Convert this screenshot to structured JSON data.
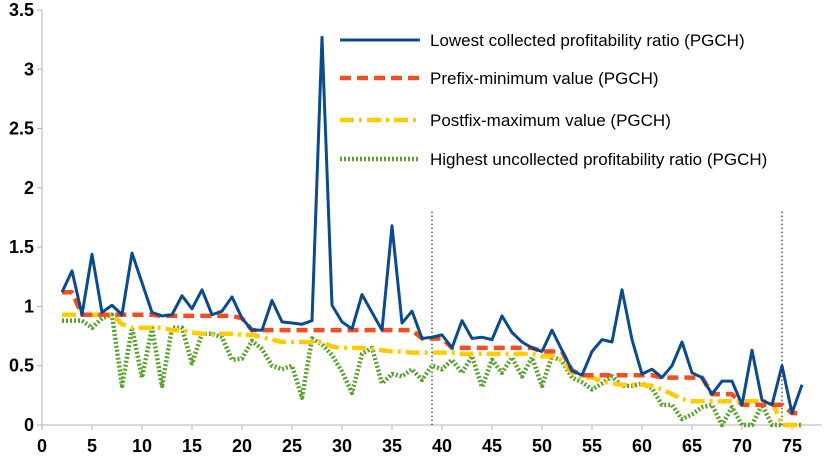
{
  "chart_data": {
    "type": "line",
    "title": "",
    "xlabel": "",
    "ylabel": "",
    "xlim": [
      0,
      78
    ],
    "ylim": [
      0,
      3.5
    ],
    "grid": false,
    "legend_position": "top-right",
    "x_ticks": [
      0,
      5,
      10,
      15,
      20,
      25,
      30,
      35,
      40,
      45,
      50,
      55,
      60,
      65,
      70,
      75
    ],
    "x_tick_labels": [
      "0",
      "5",
      "10",
      "15",
      "20",
      "25",
      "30",
      "35",
      "40",
      "45",
      "50",
      "55",
      "60",
      "65",
      "70",
      "75"
    ],
    "y_ticks": [
      0,
      0.5,
      1,
      1.5,
      2,
      2.5,
      3,
      3.5
    ],
    "y_tick_labels": [
      "0",
      "0.5",
      "1",
      "1.5",
      "2",
      "2.5",
      "3",
      "3.5"
    ],
    "vertical_markers": [
      39,
      74
    ],
    "x": [
      2,
      3,
      4,
      5,
      6,
      7,
      8,
      9,
      10,
      11,
      12,
      13,
      14,
      15,
      16,
      17,
      18,
      19,
      20,
      21,
      22,
      23,
      24,
      25,
      26,
      27,
      28,
      29,
      30,
      31,
      32,
      33,
      34,
      35,
      36,
      37,
      38,
      39,
      40,
      41,
      42,
      43,
      44,
      45,
      46,
      47,
      48,
      49,
      50,
      51,
      52,
      53,
      54,
      55,
      56,
      57,
      58,
      59,
      60,
      61,
      62,
      63,
      64,
      65,
      66,
      67,
      68,
      69,
      70,
      71,
      72,
      73,
      74,
      75,
      76
    ],
    "series": [
      {
        "name": "Lowest collected profitability ratio (PGCH)",
        "color": "#0b4a8c",
        "style": "solid",
        "values": [
          1.12,
          1.3,
          0.93,
          1.44,
          0.95,
          1.01,
          0.93,
          1.45,
          1.2,
          0.95,
          0.92,
          0.93,
          1.09,
          0.98,
          1.14,
          0.93,
          0.96,
          1.08,
          0.9,
          0.8,
          0.8,
          1.05,
          0.87,
          0.86,
          0.85,
          0.88,
          3.27,
          1.01,
          0.87,
          0.81,
          1.1,
          0.95,
          0.8,
          1.68,
          0.86,
          0.96,
          0.73,
          0.74,
          0.76,
          0.65,
          0.88,
          0.73,
          0.74,
          0.72,
          0.92,
          0.78,
          0.7,
          0.65,
          0.62,
          0.8,
          0.63,
          0.46,
          0.42,
          0.62,
          0.72,
          0.7,
          1.14,
          0.72,
          0.43,
          0.47,
          0.4,
          0.5,
          0.7,
          0.44,
          0.4,
          0.26,
          0.37,
          0.37,
          0.17,
          0.63,
          0.21,
          0.17,
          0.5,
          0.1,
          0.34
        ]
      },
      {
        "name": "Prefix-minimum value (PGCH)",
        "color": "#f04e23",
        "style": "dashed",
        "values": [
          1.12,
          1.12,
          0.93,
          0.93,
          0.93,
          0.93,
          0.93,
          0.93,
          0.93,
          0.93,
          0.92,
          0.92,
          0.92,
          0.92,
          0.92,
          0.92,
          0.92,
          0.92,
          0.9,
          0.8,
          0.8,
          0.8,
          0.8,
          0.8,
          0.8,
          0.8,
          0.8,
          0.8,
          0.8,
          0.8,
          0.8,
          0.8,
          0.8,
          0.8,
          0.8,
          0.8,
          0.73,
          0.73,
          0.73,
          0.65,
          0.65,
          0.65,
          0.65,
          0.65,
          0.65,
          0.65,
          0.65,
          0.65,
          0.62,
          0.62,
          0.62,
          0.46,
          0.42,
          0.42,
          0.42,
          0.42,
          0.42,
          0.42,
          0.42,
          0.42,
          0.4,
          0.4,
          0.4,
          0.4,
          0.4,
          0.26,
          0.26,
          0.26,
          0.17,
          0.17,
          0.17,
          0.17,
          0.17,
          0.1,
          0.1
        ]
      },
      {
        "name": "Postfix-maximum value (PGCH)",
        "color": "#ffcc00",
        "style": "dash-dot",
        "values": [
          0.93,
          0.93,
          0.93,
          0.93,
          0.93,
          0.93,
          0.85,
          0.82,
          0.82,
          0.82,
          0.82,
          0.8,
          0.8,
          0.78,
          0.77,
          0.77,
          0.77,
          0.77,
          0.76,
          0.76,
          0.74,
          0.72,
          0.7,
          0.7,
          0.7,
          0.7,
          0.7,
          0.66,
          0.65,
          0.65,
          0.65,
          0.64,
          0.63,
          0.62,
          0.62,
          0.61,
          0.61,
          0.61,
          0.61,
          0.61,
          0.6,
          0.6,
          0.6,
          0.6,
          0.6,
          0.6,
          0.6,
          0.6,
          0.58,
          0.58,
          0.54,
          0.44,
          0.4,
          0.4,
          0.37,
          0.35,
          0.34,
          0.34,
          0.34,
          0.33,
          0.3,
          0.26,
          0.22,
          0.2,
          0.2,
          0.2,
          0.2,
          0.2,
          0.2,
          0.2,
          0.2,
          0.2,
          0.0,
          0.0,
          0.0
        ]
      },
      {
        "name": "Highest uncollected profitability ratio (PGCH)",
        "color": "#5aa02c",
        "style": "dotted",
        "values": [
          0.88,
          0.88,
          0.88,
          0.82,
          0.9,
          0.93,
          0.33,
          0.82,
          0.4,
          0.82,
          0.33,
          0.82,
          0.82,
          0.52,
          0.77,
          0.77,
          0.74,
          0.55,
          0.56,
          0.71,
          0.64,
          0.5,
          0.47,
          0.5,
          0.23,
          0.73,
          0.68,
          0.59,
          0.45,
          0.27,
          0.6,
          0.65,
          0.35,
          0.43,
          0.41,
          0.47,
          0.38,
          0.5,
          0.47,
          0.55,
          0.44,
          0.58,
          0.32,
          0.55,
          0.44,
          0.57,
          0.41,
          0.57,
          0.33,
          0.58,
          0.54,
          0.4,
          0.36,
          0.3,
          0.35,
          0.41,
          0.33,
          0.33,
          0.35,
          0.31,
          0.17,
          0.17,
          0.05,
          0.09,
          0.15,
          0.17,
          0.0,
          0.15,
          0.0,
          0.0,
          0.17,
          0.0,
          0.0,
          0.0,
          0.0
        ]
      }
    ]
  }
}
